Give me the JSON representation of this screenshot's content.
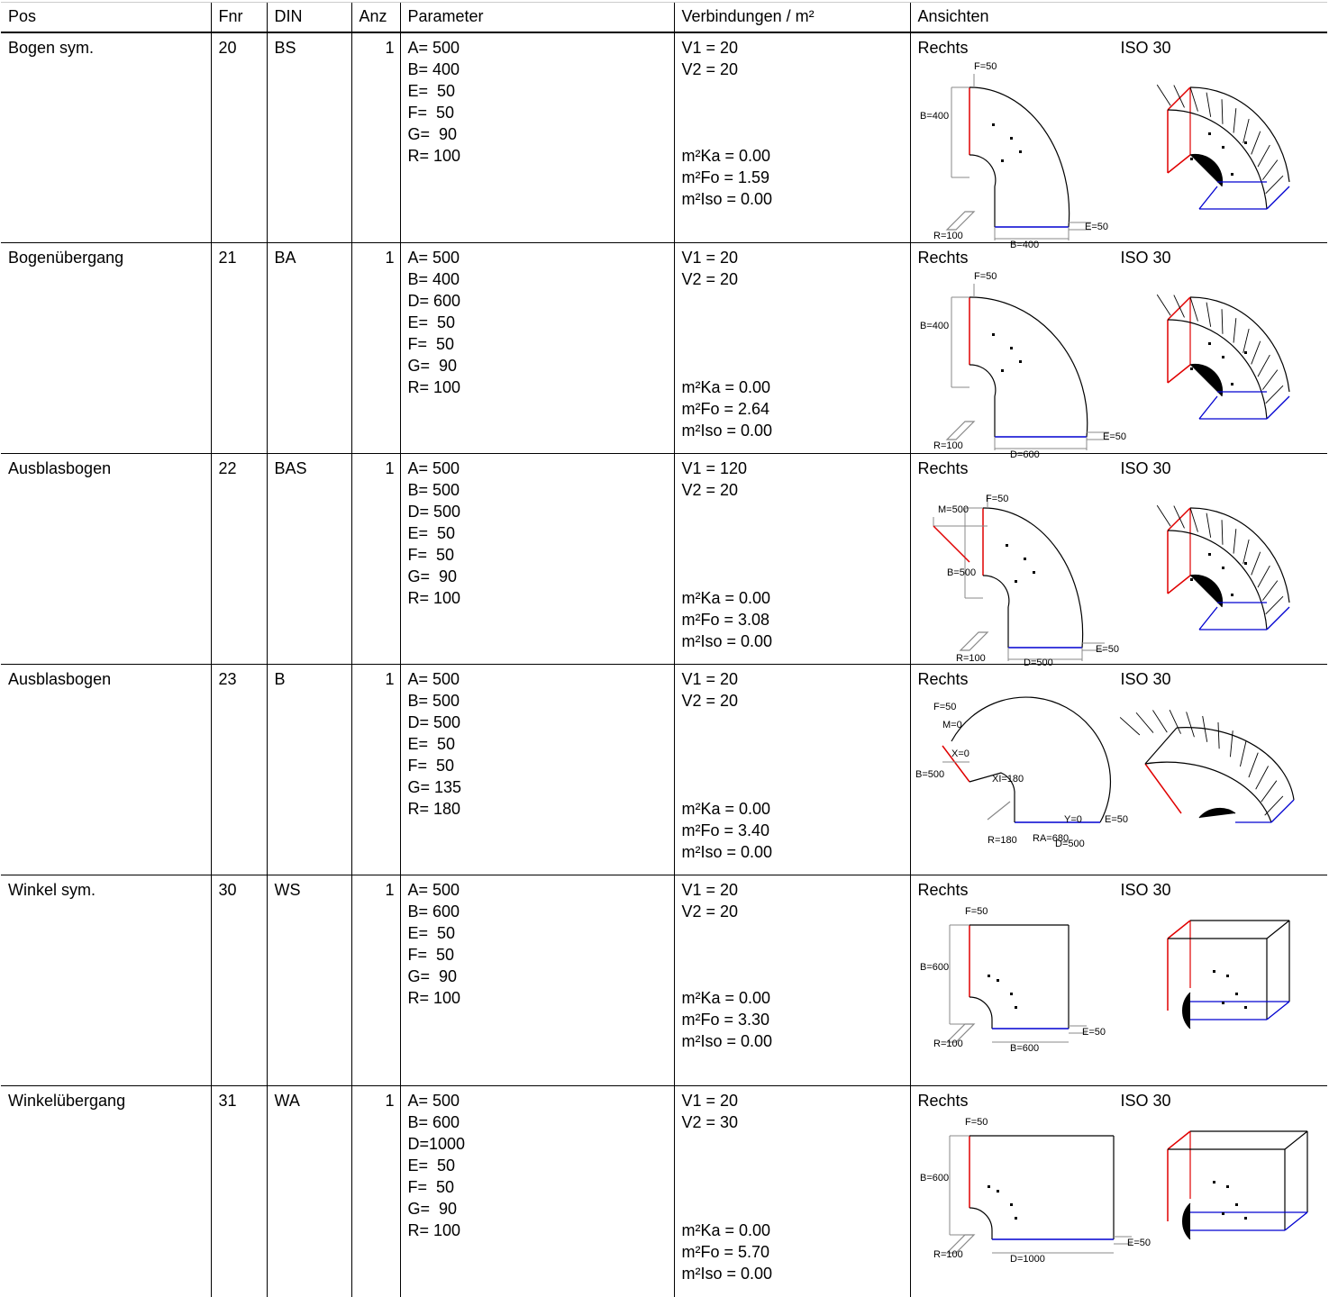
{
  "columns": [
    "Pos",
    "Fnr",
    "DIN",
    "Anz",
    "Parameter",
    "Verbindungen / m²",
    "Ansichten"
  ],
  "rows": [
    {
      "pos": "Bogen sym.",
      "fnr": "20",
      "din": "BS",
      "anz": "1",
      "params": [
        "A= 500",
        "B= 400",
        "E=  50",
        "F=  50",
        "G=  90",
        "R= 100"
      ],
      "verb": [
        "V1 = 20",
        "V2 = 20"
      ],
      "m2": [
        "m²Ka = 0.00",
        "m²Fo = 1.59",
        "m²Iso = 0.00"
      ],
      "view_left": "Rechts",
      "view_right": "ISO 30",
      "dims": [
        "F=50",
        "B=400",
        "R=100",
        "B=400",
        "E=50"
      ]
    },
    {
      "pos": "Bogenübergang",
      "fnr": "21",
      "din": "BA",
      "anz": "1",
      "params": [
        "A= 500",
        "B= 400",
        "D= 600",
        "E=  50",
        "F=  50",
        "G=  90",
        "R= 100"
      ],
      "verb": [
        "V1 = 20",
        "V2 = 20"
      ],
      "m2": [
        "m²Ka = 0.00",
        "m²Fo = 2.64",
        "m²Iso = 0.00"
      ],
      "view_left": "Rechts",
      "view_right": "ISO 30",
      "dims": [
        "F=50",
        "B=400",
        "R=100",
        "D=600",
        "E=50"
      ]
    },
    {
      "pos": "Ausblasbogen",
      "fnr": "22",
      "din": "BAS",
      "anz": "1",
      "params": [
        "A= 500",
        "B= 500",
        "D= 500",
        "E=  50",
        "F=  50",
        "G=  90",
        "R= 100"
      ],
      "verb": [
        "V1 = 120",
        "V2 = 20"
      ],
      "m2": [
        "m²Ka = 0.00",
        "m²Fo = 3.08",
        "m²Iso = 0.00"
      ],
      "view_left": "Rechts",
      "view_right": "ISO 30",
      "dims": [
        "F=50",
        "M=500",
        "B=500",
        "R=100",
        "D=500",
        "E=50"
      ]
    },
    {
      "pos": "Ausblasbogen",
      "fnr": "23",
      "din": "B",
      "anz": "1",
      "params": [
        "A= 500",
        "B= 500",
        "D= 500",
        "E=  50",
        "F=  50",
        "G= 135",
        "R= 180"
      ],
      "verb": [
        "V1 = 20",
        "V2 = 20"
      ],
      "m2": [
        "m²Ka = 0.00",
        "m²Fo = 3.40",
        "m²Iso = 0.00"
      ],
      "view_left": "Rechts",
      "view_right": "ISO 30",
      "dims": [
        "F=50",
        "M=0",
        "X=0",
        "B=500",
        "XI=180",
        "Y=0",
        "E=50",
        "R=180",
        "RA=680",
        "D=500"
      ]
    },
    {
      "pos": "Winkel sym.",
      "fnr": "30",
      "din": "WS",
      "anz": "1",
      "params": [
        "A= 500",
        "B= 600",
        "E=  50",
        "F=  50",
        "G=  90",
        "R= 100"
      ],
      "verb": [
        "V1 = 20",
        "V2 = 20"
      ],
      "m2": [
        "m²Ka = 0.00",
        "m²Fo = 3.30",
        "m²Iso = 0.00"
      ],
      "view_left": "Rechts",
      "view_right": "ISO 30",
      "dims": [
        "F=50",
        "B=600",
        "R=100",
        "B=600",
        "E=50"
      ]
    },
    {
      "pos": "Winkelübergang",
      "fnr": "31",
      "din": "WA",
      "anz": "1",
      "params": [
        "A= 500",
        "B= 600",
        "D=1000",
        "E=  50",
        "F=  50",
        "G=  90",
        "R= 100"
      ],
      "verb": [
        "V1 = 20",
        "V2 = 30"
      ],
      "m2": [
        "m²Ka = 0.00",
        "m²Fo = 5.70",
        "m²Iso = 0.00"
      ],
      "view_left": "Rechts",
      "view_right": "ISO 30",
      "dims": [
        "F=50",
        "B=600",
        "R=100",
        "D=1000",
        "E=50"
      ]
    }
  ],
  "colors": {
    "red_edge": "#e00000",
    "blue_edge": "#0000d0",
    "dim_line": "#888888"
  }
}
